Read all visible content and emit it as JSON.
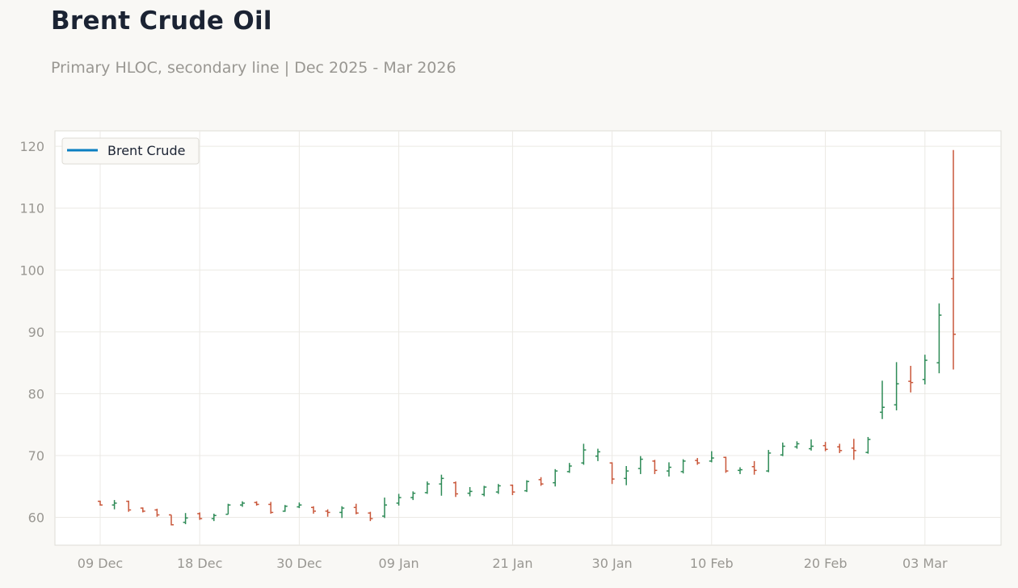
{
  "chart_data": {
    "type": "ohlc",
    "title": "Brent Crude Oil",
    "subtitle": "Primary HLOC, secondary line | Dec 2025 - Mar 2026",
    "xlabel": "",
    "ylabel": "",
    "ylim": [
      55.5,
      122.5
    ],
    "y_ticks": [
      60,
      70,
      80,
      90,
      100,
      110,
      120
    ],
    "x_ticks": [
      "09 Dec",
      "18 Dec",
      "30 Dec",
      "09 Jan",
      "21 Jan",
      "30 Jan",
      "10 Feb",
      "20 Feb",
      "03 Mar"
    ],
    "grid": true,
    "legend": {
      "position": "top-left",
      "entries": [
        "Brent Crude"
      ]
    },
    "colors": {
      "up": "#2e8b57",
      "down": "#c9573a",
      "line": "#0a7fc2",
      "grid": "#ebe9e4",
      "frame": "#dedcd6"
    },
    "series": [
      {
        "name": "Brent Crude",
        "bars": [
          {
            "x": "09 Dec",
            "o": 62.6,
            "h": 62.7,
            "l": 61.9,
            "c": 62.0
          },
          {
            "x": "10 Dec",
            "o": 62.0,
            "h": 62.8,
            "l": 61.3,
            "c": 62.3
          },
          {
            "x": "11 Dec",
            "o": 62.6,
            "h": 62.7,
            "l": 60.9,
            "c": 61.2
          },
          {
            "x": "12 Dec",
            "o": 61.5,
            "h": 61.6,
            "l": 60.8,
            "c": 61.0
          },
          {
            "x": "15 Dec",
            "o": 61.2,
            "h": 61.4,
            "l": 60.1,
            "c": 60.4
          },
          {
            "x": "16 Dec",
            "o": 60.4,
            "h": 60.4,
            "l": 58.7,
            "c": 58.8
          },
          {
            "x": "17 Dec",
            "o": 59.2,
            "h": 60.7,
            "l": 58.9,
            "c": 59.9
          },
          {
            "x": "18 Dec",
            "o": 60.6,
            "h": 60.8,
            "l": 59.6,
            "c": 59.8
          },
          {
            "x": "19 Dec",
            "o": 59.8,
            "h": 60.6,
            "l": 59.4,
            "c": 60.3
          },
          {
            "x": "22 Dec",
            "o": 60.5,
            "h": 62.2,
            "l": 60.5,
            "c": 62.0
          },
          {
            "x": "23 Dec",
            "o": 62.0,
            "h": 62.6,
            "l": 61.7,
            "c": 62.3
          },
          {
            "x": "24 Dec",
            "o": 62.4,
            "h": 62.6,
            "l": 61.9,
            "c": 62.1
          },
          {
            "x": "26 Dec",
            "o": 62.1,
            "h": 62.5,
            "l": 60.6,
            "c": 60.8
          },
          {
            "x": "29 Dec",
            "o": 61.0,
            "h": 62.0,
            "l": 60.9,
            "c": 61.8
          },
          {
            "x": "30 Dec",
            "o": 61.7,
            "h": 62.4,
            "l": 61.5,
            "c": 62.0
          },
          {
            "x": "31 Dec",
            "o": 61.6,
            "h": 61.8,
            "l": 60.6,
            "c": 61.0
          },
          {
            "x": "02 Jan",
            "o": 61.0,
            "h": 61.3,
            "l": 60.1,
            "c": 60.8
          },
          {
            "x": "05 Jan",
            "o": 60.8,
            "h": 61.8,
            "l": 59.9,
            "c": 61.5
          },
          {
            "x": "06 Jan",
            "o": 61.6,
            "h": 62.2,
            "l": 60.5,
            "c": 60.7
          },
          {
            "x": "07 Jan",
            "o": 60.7,
            "h": 60.9,
            "l": 59.4,
            "c": 59.8
          },
          {
            "x": "08 Jan",
            "o": 60.2,
            "h": 63.2,
            "l": 59.9,
            "c": 62.0
          },
          {
            "x": "09 Jan",
            "o": 62.3,
            "h": 63.8,
            "l": 61.9,
            "c": 63.2
          },
          {
            "x": "12 Jan",
            "o": 63.2,
            "h": 64.2,
            "l": 62.8,
            "c": 63.9
          },
          {
            "x": "13 Jan",
            "o": 64.0,
            "h": 65.8,
            "l": 63.8,
            "c": 65.4
          },
          {
            "x": "14 Jan",
            "o": 65.4,
            "h": 66.9,
            "l": 63.5,
            "c": 66.3
          },
          {
            "x": "15 Jan",
            "o": 65.6,
            "h": 65.8,
            "l": 63.3,
            "c": 63.8
          },
          {
            "x": "16 Jan",
            "o": 63.9,
            "h": 64.9,
            "l": 63.4,
            "c": 64.2
          },
          {
            "x": "19 Jan",
            "o": 63.7,
            "h": 65.1,
            "l": 63.4,
            "c": 64.9
          },
          {
            "x": "20 Jan",
            "o": 64.1,
            "h": 65.4,
            "l": 63.8,
            "c": 65.1
          },
          {
            "x": "21 Jan",
            "o": 65.2,
            "h": 65.3,
            "l": 63.6,
            "c": 64.1
          },
          {
            "x": "22 Jan",
            "o": 64.3,
            "h": 66.0,
            "l": 64.1,
            "c": 65.8
          },
          {
            "x": "23 Jan",
            "o": 66.1,
            "h": 66.5,
            "l": 65.1,
            "c": 65.4
          },
          {
            "x": "26 Jan",
            "o": 65.6,
            "h": 67.8,
            "l": 65.0,
            "c": 67.5
          },
          {
            "x": "27 Jan",
            "o": 67.4,
            "h": 68.8,
            "l": 67.2,
            "c": 68.3
          },
          {
            "x": "28 Jan",
            "o": 68.8,
            "h": 71.9,
            "l": 68.5,
            "c": 70.9
          },
          {
            "x": "29 Jan",
            "o": 69.9,
            "h": 71.1,
            "l": 69.1,
            "c": 70.6
          },
          {
            "x": "30 Jan",
            "o": 68.8,
            "h": 68.9,
            "l": 65.4,
            "c": 66.2
          },
          {
            "x": "02 Feb",
            "o": 66.3,
            "h": 68.3,
            "l": 65.2,
            "c": 67.5
          },
          {
            "x": "03 Feb",
            "o": 67.9,
            "h": 69.9,
            "l": 67.0,
            "c": 69.4
          },
          {
            "x": "04 Feb",
            "o": 69.1,
            "h": 69.3,
            "l": 67.0,
            "c": 67.6
          },
          {
            "x": "05 Feb",
            "o": 67.5,
            "h": 68.9,
            "l": 66.6,
            "c": 68.1
          },
          {
            "x": "06 Feb",
            "o": 67.4,
            "h": 69.4,
            "l": 67.1,
            "c": 69.1
          },
          {
            "x": "09 Feb",
            "o": 69.2,
            "h": 69.6,
            "l": 68.5,
            "c": 68.8
          },
          {
            "x": "10 Feb",
            "o": 69.1,
            "h": 70.7,
            "l": 68.9,
            "c": 69.6
          },
          {
            "x": "11 Feb",
            "o": 69.7,
            "h": 69.8,
            "l": 67.2,
            "c": 67.5
          },
          {
            "x": "12 Feb",
            "o": 67.6,
            "h": 68.1,
            "l": 67.0,
            "c": 67.7
          },
          {
            "x": "13 Feb",
            "o": 68.2,
            "h": 69.1,
            "l": 66.9,
            "c": 67.6
          },
          {
            "x": "16 Feb",
            "o": 67.5,
            "h": 70.9,
            "l": 67.3,
            "c": 70.4
          },
          {
            "x": "17 Feb",
            "o": 70.1,
            "h": 72.1,
            "l": 69.9,
            "c": 71.5
          },
          {
            "x": "18 Feb",
            "o": 71.4,
            "h": 72.3,
            "l": 71.1,
            "c": 71.9
          },
          {
            "x": "19 Feb",
            "o": 71.1,
            "h": 72.6,
            "l": 70.8,
            "c": 71.5
          },
          {
            "x": "20 Feb",
            "o": 71.6,
            "h": 72.2,
            "l": 70.7,
            "c": 71.0
          },
          {
            "x": "23 Feb",
            "o": 71.4,
            "h": 71.9,
            "l": 70.4,
            "c": 70.8
          },
          {
            "x": "24 Feb",
            "o": 71.2,
            "h": 72.7,
            "l": 69.3,
            "c": 70.8
          },
          {
            "x": "25 Feb",
            "o": 70.5,
            "h": 73.0,
            "l": 70.3,
            "c": 72.6
          },
          {
            "x": "26 Feb",
            "o": 77.0,
            "h": 82.1,
            "l": 75.9,
            "c": 77.8
          },
          {
            "x": "27 Feb",
            "o": 78.2,
            "h": 85.1,
            "l": 77.3,
            "c": 81.6
          },
          {
            "x": "02 Mar",
            "o": 82.0,
            "h": 84.5,
            "l": 80.2,
            "c": 81.8
          },
          {
            "x": "03 Mar",
            "o": 82.3,
            "h": 86.3,
            "l": 81.5,
            "c": 85.4
          },
          {
            "x": "04 Mar",
            "o": 85.0,
            "h": 94.6,
            "l": 83.3,
            "c": 92.7
          },
          {
            "x": "05 Mar",
            "o": 98.6,
            "h": 119.4,
            "l": 83.9,
            "c": 89.6
          }
        ]
      }
    ]
  }
}
